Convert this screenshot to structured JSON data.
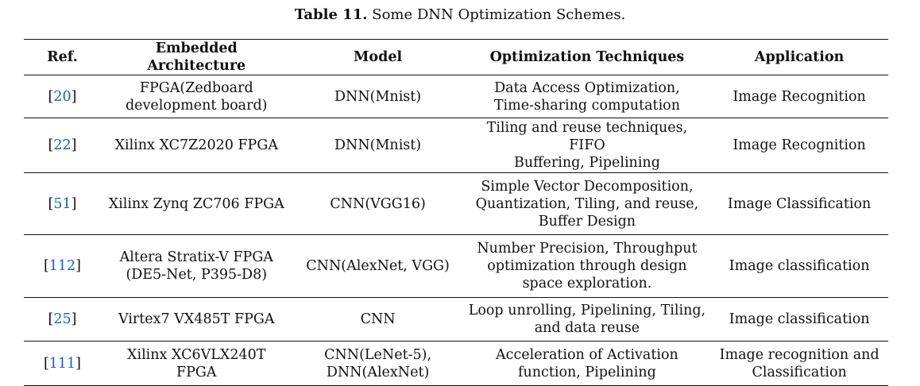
{
  "caption": {
    "label": "Table 11.",
    "text": "Some DNN Optimization Schemes."
  },
  "table": {
    "headers": [
      "Ref.",
      "Embedded Architecture",
      "Model",
      "Optimization Techniques",
      "Application"
    ],
    "rows": [
      {
        "ref": "20",
        "arch": [
          "FPGA(Zedboard",
          "development board)"
        ],
        "model": [
          "DNN(Mnist)"
        ],
        "opt": [
          "Data Access Optimization,",
          "Time-sharing computation"
        ],
        "app": [
          "Image Recognition"
        ]
      },
      {
        "ref": "22",
        "arch": [
          "Xilinx XC7Z2020 FPGA"
        ],
        "model": [
          "DNN(Mnist)"
        ],
        "opt": [
          "Tiling and reuse techniques, FIFO",
          "Buffering, Pipelining"
        ],
        "app": [
          "Image Recognition"
        ]
      },
      {
        "ref": "51",
        "arch": [
          "Xilinx Zynq ZC706 FPGA"
        ],
        "model": [
          "CNN(VGG16)"
        ],
        "opt": [
          "Simple Vector Decomposition,",
          "Quantization, Tiling, and reuse,",
          "Buffer Design"
        ],
        "app": [
          "Image Classification"
        ]
      },
      {
        "ref": "112",
        "arch": [
          "Altera Stratix-V FPGA",
          "(DE5-Net, P395-D8)"
        ],
        "model": [
          "CNN(AlexNet, VGG)"
        ],
        "opt": [
          "Number Precision, Throughput",
          "optimization through design",
          "space exploration."
        ],
        "app": [
          "Image classification"
        ]
      },
      {
        "ref": "25",
        "arch": [
          "Virtex7 VX485T FPGA"
        ],
        "model": [
          "CNN"
        ],
        "opt": [
          "Loop unrolling, Pipelining, Tiling,",
          "and data reuse"
        ],
        "app": [
          "Image classification"
        ]
      },
      {
        "ref": "111",
        "arch": [
          "Xilinx XC6VLX240T",
          "FPGA"
        ],
        "model": [
          "CNN(LeNet-5),",
          "DNN(AlexNet)"
        ],
        "opt": [
          "Acceleration of Activation",
          "function, Pipelining"
        ],
        "app": [
          "Image recognition and",
          "Classification"
        ]
      }
    ]
  },
  "colors": {
    "ref_link": "#1a5fb4",
    "rule": "#111111"
  }
}
